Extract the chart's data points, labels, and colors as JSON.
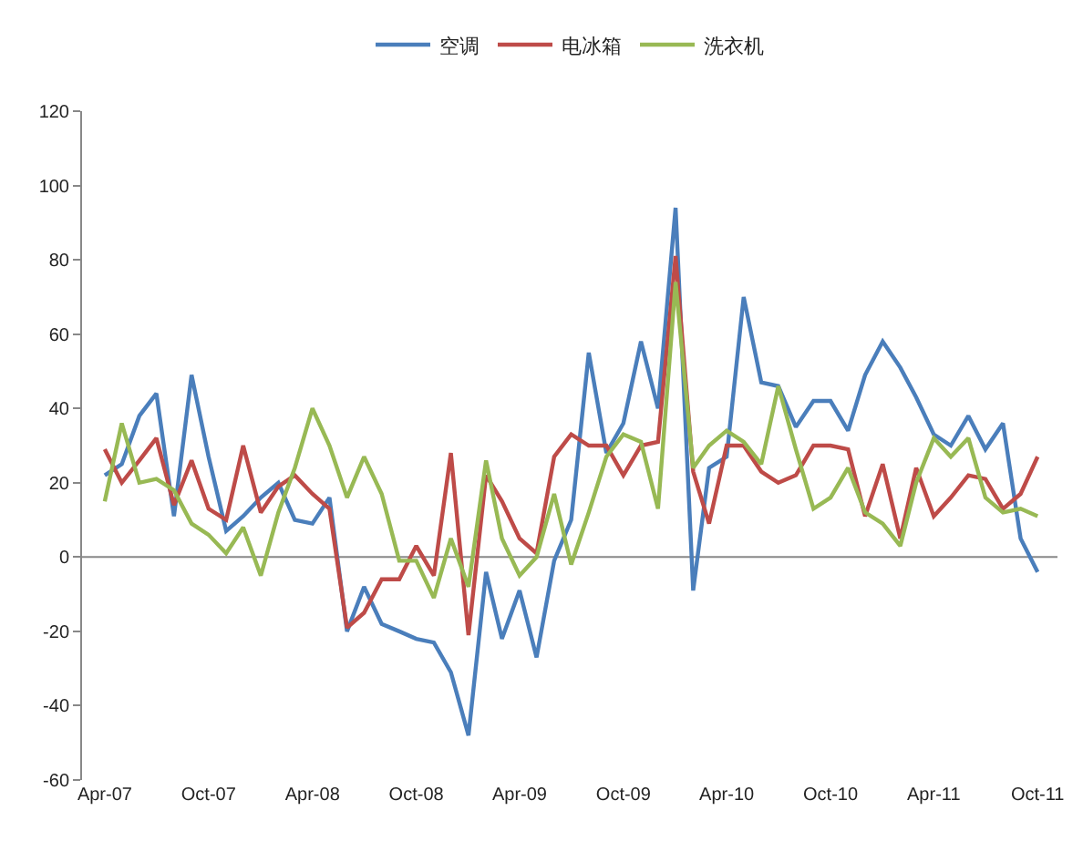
{
  "chart_data": {
    "type": "line",
    "x": [
      "2007-04",
      "2007-05",
      "2007-06",
      "2007-07",
      "2007-08",
      "2007-09",
      "2007-10",
      "2007-11",
      "2007-12",
      "2008-01",
      "2008-02",
      "2008-03",
      "2008-04",
      "2008-05",
      "2008-06",
      "2008-07",
      "2008-08",
      "2008-09",
      "2008-10",
      "2008-11",
      "2008-12",
      "2009-01",
      "2009-02",
      "2009-03",
      "2009-04",
      "2009-05",
      "2009-06",
      "2009-07",
      "2009-08",
      "2009-09",
      "2009-10",
      "2009-11",
      "2009-12",
      "2010-01",
      "2010-02",
      "2010-03",
      "2010-04",
      "2010-05",
      "2010-06",
      "2010-07",
      "2010-08",
      "2010-09",
      "2010-10",
      "2010-11",
      "2010-12",
      "2011-01",
      "2011-02",
      "2011-03",
      "2011-04",
      "2011-05",
      "2011-06",
      "2011-07",
      "2011-08",
      "2011-09",
      "2011-10"
    ],
    "series": [
      {
        "name": "空调",
        "color": "#4a7ebb",
        "values": [
          22,
          25,
          38,
          44,
          11,
          49,
          27,
          7,
          11,
          16,
          20,
          10,
          9,
          16,
          -20,
          -8,
          -18,
          -20,
          -22,
          -23,
          -31,
          -48,
          -4,
          -22,
          -9,
          -27,
          -1,
          10,
          55,
          28,
          36,
          58,
          40,
          94,
          -9,
          24,
          27,
          70,
          47,
          46,
          35,
          42,
          42,
          34,
          49,
          58,
          51,
          43,
          33,
          30,
          38,
          29,
          36,
          5,
          -4
        ]
      },
      {
        "name": "电冰箱",
        "color": "#be4b48",
        "values": [
          29,
          20,
          26,
          32,
          14,
          26,
          13,
          10,
          30,
          12,
          19,
          22,
          17,
          13,
          -19,
          -15,
          -6,
          -6,
          3,
          -5,
          28,
          -21,
          22,
          15,
          5,
          1,
          27,
          33,
          30,
          30,
          22,
          30,
          31,
          81,
          23,
          9,
          30,
          30,
          23,
          20,
          22,
          30,
          30,
          29,
          11,
          25,
          5,
          24,
          11,
          16,
          22,
          21,
          13,
          17,
          27
        ]
      },
      {
        "name": "洗衣机",
        "color": "#98b954",
        "values": [
          15,
          36,
          20,
          21,
          18,
          9,
          6,
          1,
          8,
          -5,
          12,
          24,
          40,
          30,
          16,
          27,
          17,
          -1,
          -1,
          -11,
          5,
          -8,
          26,
          5,
          -5,
          0,
          17,
          -2,
          12,
          27,
          33,
          31,
          13,
          74,
          24,
          30,
          34,
          31,
          25,
          46,
          29,
          13,
          16,
          24,
          12,
          9,
          3,
          20,
          32,
          27,
          32,
          16,
          12,
          13,
          11
        ]
      }
    ],
    "xlim": [
      "2007-02-20",
      "2011-11-05"
    ],
    "xticks": [
      {
        "value": "2007-04",
        "label": "Apr-07"
      },
      {
        "value": "2007-10",
        "label": "Oct-07"
      },
      {
        "value": "2008-04",
        "label": "Apr-08"
      },
      {
        "value": "2008-10",
        "label": "Oct-08"
      },
      {
        "value": "2009-04",
        "label": "Apr-09"
      },
      {
        "value": "2009-10",
        "label": "Oct-09"
      },
      {
        "value": "2010-04",
        "label": "Apr-10"
      },
      {
        "value": "2010-10",
        "label": "Oct-10"
      },
      {
        "value": "2011-04",
        "label": "Apr-11"
      },
      {
        "value": "2011-10",
        "label": "Oct-11"
      }
    ],
    "ylim": [
      -60,
      120
    ],
    "yticks": [
      -60,
      -40,
      -20,
      0,
      20,
      40,
      60,
      80,
      100,
      120
    ],
    "ref_lines": [
      {
        "axis": "y",
        "value": 0,
        "color": "#888888"
      }
    ],
    "grid": false,
    "legend": "top",
    "marker": "none",
    "line_style": "solid"
  }
}
